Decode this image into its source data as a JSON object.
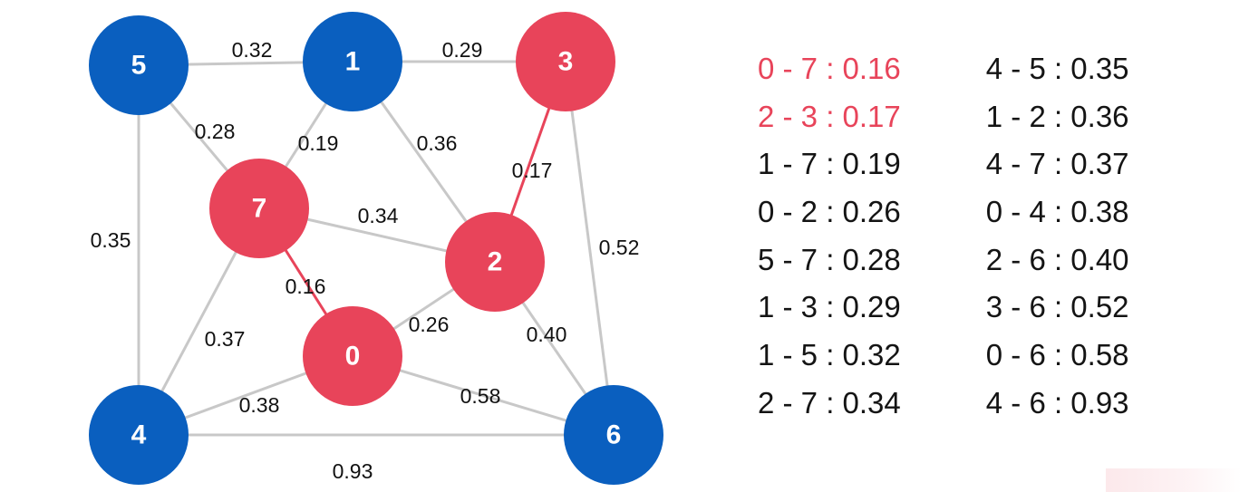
{
  "graph": {
    "nodes": [
      {
        "id": "0",
        "group": "tree"
      },
      {
        "id": "1",
        "group": "other"
      },
      {
        "id": "2",
        "group": "tree"
      },
      {
        "id": "3",
        "group": "tree"
      },
      {
        "id": "4",
        "group": "other"
      },
      {
        "id": "5",
        "group": "other"
      },
      {
        "id": "6",
        "group": "other"
      },
      {
        "id": "7",
        "group": "tree"
      }
    ],
    "edges": [
      {
        "from": "5",
        "to": "1",
        "weight": "0.32",
        "highlighted": false
      },
      {
        "from": "1",
        "to": "3",
        "weight": "0.29",
        "highlighted": false
      },
      {
        "from": "5",
        "to": "7",
        "weight": "0.28",
        "highlighted": false
      },
      {
        "from": "1",
        "to": "7",
        "weight": "0.19",
        "highlighted": false
      },
      {
        "from": "1",
        "to": "2",
        "weight": "0.36",
        "highlighted": false
      },
      {
        "from": "2",
        "to": "3",
        "weight": "0.17",
        "highlighted": true
      },
      {
        "from": "5",
        "to": "4",
        "weight": "0.35",
        "highlighted": false
      },
      {
        "from": "7",
        "to": "2",
        "weight": "0.34",
        "highlighted": false
      },
      {
        "from": "3",
        "to": "6",
        "weight": "0.52",
        "highlighted": false
      },
      {
        "from": "7",
        "to": "0",
        "weight": "0.16",
        "highlighted": true
      },
      {
        "from": "7",
        "to": "4",
        "weight": "0.37",
        "highlighted": false
      },
      {
        "from": "0",
        "to": "2",
        "weight": "0.26",
        "highlighted": false
      },
      {
        "from": "2",
        "to": "6",
        "weight": "0.40",
        "highlighted": false
      },
      {
        "from": "0",
        "to": "4",
        "weight": "0.38",
        "highlighted": false
      },
      {
        "from": "0",
        "to": "6",
        "weight": "0.58",
        "highlighted": false
      },
      {
        "from": "4",
        "to": "6",
        "weight": "0.93",
        "highlighted": false
      }
    ]
  },
  "edge_list": {
    "columns": [
      [
        {
          "text": "0 - 7 : 0.16",
          "highlighted": true
        },
        {
          "text": "2 - 3 : 0.17",
          "highlighted": true
        },
        {
          "text": "1 - 7 : 0.19",
          "highlighted": false
        },
        {
          "text": "0 - 2 : 0.26",
          "highlighted": false
        },
        {
          "text": "5 - 7 : 0.28",
          "highlighted": false
        },
        {
          "text": "1 - 3 : 0.29",
          "highlighted": false
        },
        {
          "text": "1 - 5 : 0.32",
          "highlighted": false
        },
        {
          "text": "2 - 7 : 0.34",
          "highlighted": false
        }
      ],
      [
        {
          "text": "4 - 5 : 0.35",
          "highlighted": false
        },
        {
          "text": "1 - 2 : 0.36",
          "highlighted": false
        },
        {
          "text": "4 - 7 : 0.37",
          "highlighted": false
        },
        {
          "text": "0 - 4 : 0.38",
          "highlighted": false
        },
        {
          "text": "2 - 6 : 0.40",
          "highlighted": false
        },
        {
          "text": "3 - 6 : 0.52",
          "highlighted": false
        },
        {
          "text": "0 - 6 : 0.58",
          "highlighted": false
        },
        {
          "text": "4 - 6 : 0.93",
          "highlighted": false
        }
      ]
    ]
  },
  "colors": {
    "tree_node": "#e8445a",
    "other_node": "#0a5fbf",
    "edge": "#c8c8c8",
    "highlight_edge": "#e8445a",
    "highlight_text": "#e8445a",
    "text": "#141414"
  }
}
